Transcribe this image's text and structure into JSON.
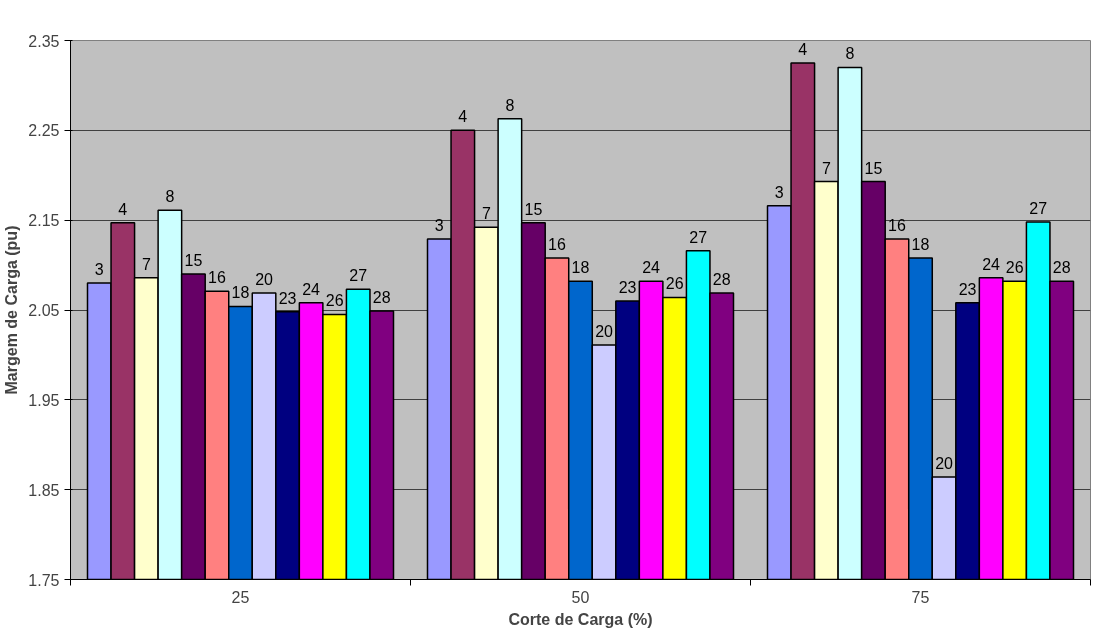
{
  "chart_data": {
    "type": "bar",
    "xlabel": "Corte de Carga (%)",
    "ylabel": "Margem de Carga (pu)",
    "categories": [
      "25",
      "50",
      "75"
    ],
    "ylim": [
      1.75,
      2.35
    ],
    "yticks": [
      1.75,
      1.85,
      1.95,
      2.05,
      2.15,
      2.25,
      2.35
    ],
    "grid": "y",
    "legend": false,
    "series": [
      {
        "name": "3",
        "color": "#9999ff",
        "values": [
          2.08,
          2.129,
          2.166
        ]
      },
      {
        "name": "4",
        "color": "#993366",
        "values": [
          2.147,
          2.25,
          2.325
        ]
      },
      {
        "name": "7",
        "color": "#ffffcc",
        "values": [
          2.086,
          2.142,
          2.193
        ]
      },
      {
        "name": "8",
        "color": "#ccffff",
        "values": [
          2.161,
          2.263,
          2.32
        ]
      },
      {
        "name": "15",
        "color": "#660066",
        "values": [
          2.09,
          2.147,
          2.193
        ]
      },
      {
        "name": "16",
        "color": "#ff8080",
        "values": [
          2.071,
          2.108,
          2.129
        ]
      },
      {
        "name": "18",
        "color": "#0066cc",
        "values": [
          2.054,
          2.082,
          2.108
        ]
      },
      {
        "name": "20",
        "color": "#ccccff",
        "values": [
          2.069,
          2.011,
          1.864
        ]
      },
      {
        "name": "23",
        "color": "#000080",
        "values": [
          2.048,
          2.06,
          2.058
        ]
      },
      {
        "name": "24",
        "color": "#ff00ff",
        "values": [
          2.058,
          2.082,
          2.086
        ]
      },
      {
        "name": "26",
        "color": "#ffff00",
        "values": [
          2.045,
          2.064,
          2.082
        ]
      },
      {
        "name": "27",
        "color": "#00ffff",
        "values": [
          2.073,
          2.116,
          2.148
        ]
      },
      {
        "name": "28",
        "color": "#800080",
        "values": [
          2.049,
          2.069,
          2.082
        ]
      }
    ]
  }
}
